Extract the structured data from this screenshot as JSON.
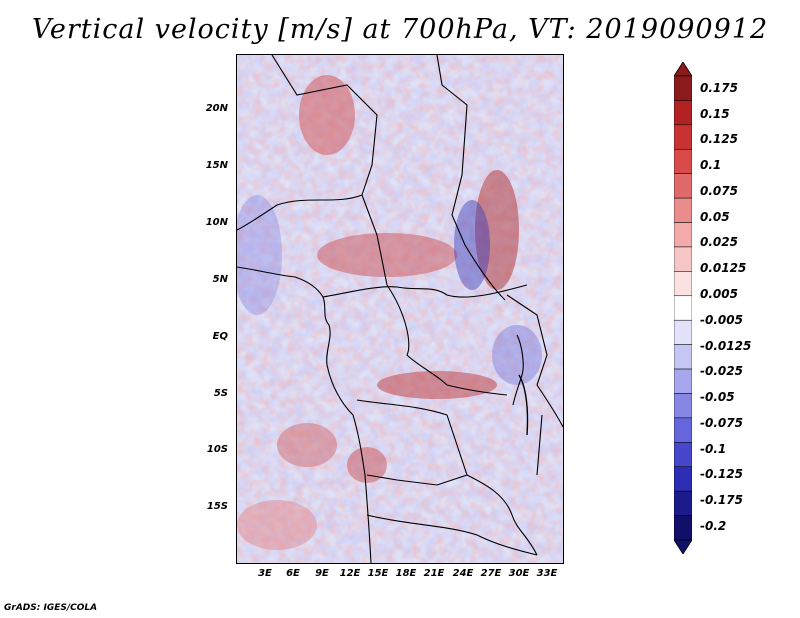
{
  "title": "Vertical velocity [m/s] at 700hPa, VT: 2019090912",
  "lat_labels": [
    "20N",
    "15N",
    "10N",
    "5N",
    "EQ",
    "5S",
    "10S",
    "15S"
  ],
  "lon_labels": [
    "3E",
    "6E",
    "9E",
    "12E",
    "15E",
    "18E",
    "21E",
    "24E",
    "27E",
    "30E",
    "33E"
  ],
  "colorbar": {
    "labels": [
      "0.175",
      "0.15",
      "0.125",
      "0.1",
      "0.075",
      "0.05",
      "0.025",
      "0.0125",
      "0.005",
      "-0.005",
      "-0.0125",
      "-0.025",
      "-0.05",
      "-0.075",
      "-0.1",
      "-0.125",
      "-0.175",
      "-0.2"
    ],
    "colors": [
      "#8b1a1a",
      "#b22222",
      "#c93232",
      "#d94a4a",
      "#e06a6a",
      "#ea8c8c",
      "#f2aaaa",
      "#f7c6c6",
      "#fbe2e2",
      "#ffffff",
      "#e2e2fb",
      "#c6c6f4",
      "#a7a7ee",
      "#8686e5",
      "#6565dc",
      "#4747cc",
      "#2c2cb4",
      "#1b1b8c",
      "#10106a"
    ]
  },
  "credit": "GrADS: IGES/COLA"
}
